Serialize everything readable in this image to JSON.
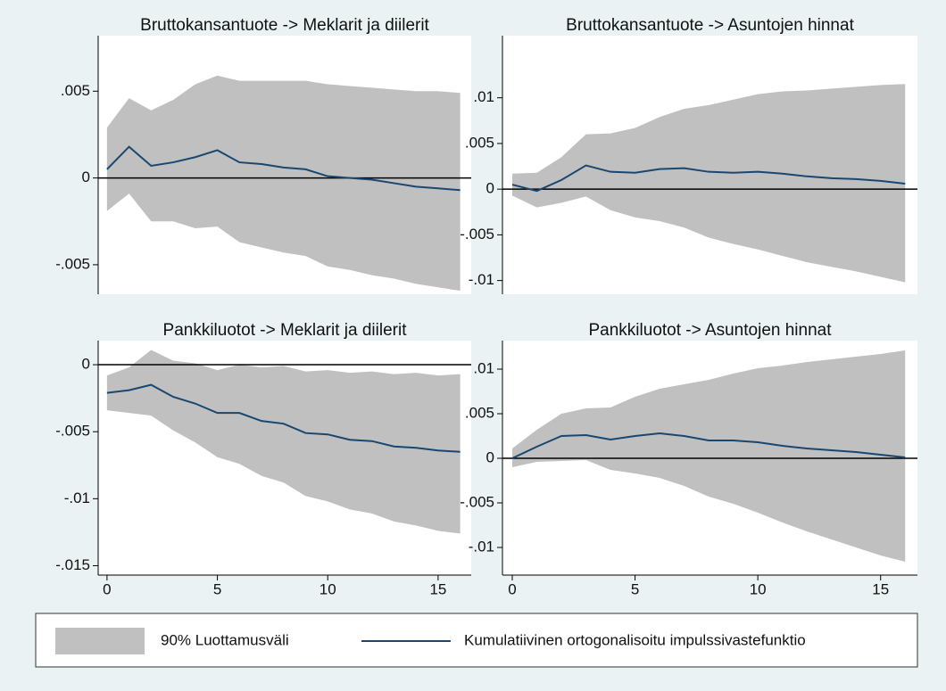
{
  "chart_data": [
    {
      "type": "line",
      "title": "Bruttokansantuote -> Meklarit ja diilerit",
      "x": [
        0,
        1,
        2,
        3,
        4,
        5,
        6,
        7,
        8,
        9,
        10,
        11,
        12,
        13,
        14,
        15,
        16
      ],
      "values": [
        0.0005,
        0.0018,
        0.0007,
        0.0009,
        0.0012,
        0.0016,
        0.0009,
        0.0008,
        0.0006,
        0.0005,
        0.0001,
        0,
        -0.0001,
        -0.0003,
        -0.0005,
        -0.0006,
        -0.0007
      ],
      "color": "#1a476f",
      "band": {
        "color": "#c0c0c0",
        "upper": [
          0.0029,
          0.0046,
          0.0039,
          0.0045,
          0.0054,
          0.0059,
          0.0056,
          0.0056,
          0.0056,
          0.0056,
          0.0054,
          0.0053,
          0.0052,
          0.0051,
          0.005,
          0.005,
          0.0049
        ],
        "lower": [
          -0.0019,
          -0.0009,
          -0.0025,
          -0.0025,
          -0.0029,
          -0.0028,
          -0.0037,
          -0.004,
          -0.0043,
          -0.0045,
          -0.0051,
          -0.0053,
          -0.0056,
          -0.0058,
          -0.0061,
          -0.0063,
          -0.0065
        ]
      },
      "refline": 0,
      "xlim": [
        -0.4,
        16.5
      ],
      "ylim": [
        -0.0067,
        0.0082
      ],
      "yticks": [
        {
          "value": 0.005,
          "label": ".005"
        },
        0,
        {
          "value": -0.005,
          "label": "-.005"
        }
      ]
    },
    {
      "type": "line",
      "title": "Bruttokansantuote -> Asuntojen hinnat",
      "x": [
        0,
        1,
        2,
        3,
        4,
        5,
        6,
        7,
        8,
        9,
        10,
        11,
        12,
        13,
        14,
        15,
        16
      ],
      "values": [
        0.0005,
        -0.0002,
        0.001,
        0.0026,
        0.0019,
        0.0018,
        0.0022,
        0.0023,
        0.0019,
        0.0018,
        0.0019,
        0.0017,
        0.0014,
        0.0012,
        0.0011,
        0.0009,
        0.0006
      ],
      "color": "#1a476f",
      "band": {
        "color": "#c0c0c0",
        "upper": [
          0.0017,
          0.0018,
          0.0035,
          0.006,
          0.0061,
          0.0067,
          0.0079,
          0.0088,
          0.0092,
          0.0098,
          0.0104,
          0.0107,
          0.0108,
          0.011,
          0.0112,
          0.0114,
          0.0115
        ],
        "lower": [
          -0.0007,
          -0.002,
          -0.0015,
          -0.0008,
          -0.0023,
          -0.0031,
          -0.0035,
          -0.0042,
          -0.0053,
          -0.006,
          -0.0066,
          -0.0073,
          -0.008,
          -0.0085,
          -0.009,
          -0.0096,
          -0.0102
        ]
      },
      "refline": 0,
      "xlim": [
        -0.4,
        16.5
      ],
      "ylim": [
        -0.0115,
        0.0168
      ],
      "yticks": [
        {
          "value": 0.01,
          "label": ".01"
        },
        {
          "value": 0.005,
          "label": ".005"
        },
        0,
        {
          "value": -0.005,
          "label": "-.005"
        },
        {
          "value": -0.01,
          "label": "-.01"
        }
      ]
    },
    {
      "type": "line",
      "title": "Pankkiluotot -> Meklarit ja diilerit",
      "x": [
        0,
        1,
        2,
        3,
        4,
        5,
        6,
        7,
        8,
        9,
        10,
        11,
        12,
        13,
        14,
        15,
        16
      ],
      "values": [
        -0.0021,
        -0.0019,
        -0.0015,
        -0.0024,
        -0.0029,
        -0.0036,
        -0.0036,
        -0.0042,
        -0.0044,
        -0.0051,
        -0.0052,
        -0.0056,
        -0.0057,
        -0.0061,
        -0.0062,
        -0.0064,
        -0.0065
      ],
      "color": "#1a476f",
      "band": {
        "color": "#c0c0c0",
        "upper": [
          -0.0008,
          -0.0002,
          0.0011,
          0.0003,
          0.0001,
          -0.0004,
          0,
          -0.0002,
          -0.0001,
          -0.0005,
          -0.0004,
          -0.0006,
          -0.0005,
          -0.0007,
          -0.0006,
          -0.0008,
          -0.0007
        ],
        "lower": [
          -0.0034,
          -0.0036,
          -0.0038,
          -0.0049,
          -0.0058,
          -0.0069,
          -0.0074,
          -0.0083,
          -0.0088,
          -0.0098,
          -0.0102,
          -0.0108,
          -0.0111,
          -0.0117,
          -0.012,
          -0.0124,
          -0.0126
        ]
      },
      "refline": 0,
      "xlim": [
        -0.4,
        16.5
      ],
      "ylim": [
        -0.0157,
        0.0018
      ],
      "xticks": [
        0,
        5,
        10,
        15
      ],
      "yticks": [
        0,
        {
          "value": -0.005,
          "label": "-.005"
        },
        {
          "value": -0.01,
          "label": "-.01"
        },
        {
          "value": -0.015,
          "label": "-.015"
        }
      ]
    },
    {
      "type": "line",
      "title": "Pankkiluotot -> Asuntojen hinnat",
      "x": [
        0,
        1,
        2,
        3,
        4,
        5,
        6,
        7,
        8,
        9,
        10,
        11,
        12,
        13,
        14,
        15,
        16
      ],
      "values": [
        0,
        0.0013,
        0.0025,
        0.0026,
        0.0021,
        0.0025,
        0.0028,
        0.0025,
        0.002,
        0.002,
        0.0018,
        0.0014,
        0.0011,
        0.0009,
        0.0007,
        0.0004,
        0.0001
      ],
      "color": "#1a476f",
      "band": {
        "color": "#c0c0c0",
        "upper": [
          0.0011,
          0.0032,
          0.005,
          0.0056,
          0.0057,
          0.0069,
          0.0078,
          0.0083,
          0.0088,
          0.0095,
          0.0101,
          0.0104,
          0.0108,
          0.0111,
          0.0114,
          0.0117,
          0.0121
        ],
        "lower": [
          -0.001,
          -0.0004,
          -0.0003,
          -0.0002,
          -0.0013,
          -0.0017,
          -0.0022,
          -0.0031,
          -0.0043,
          -0.0051,
          -0.0061,
          -0.0072,
          -0.0082,
          -0.0091,
          -0.01,
          -0.0109,
          -0.0116
        ]
      },
      "refline": 0,
      "xlim": [
        -0.4,
        16.5
      ],
      "ylim": [
        -0.0131,
        0.0132
      ],
      "xticks": [
        0,
        5,
        10,
        15
      ],
      "yticks": [
        {
          "value": 0.01,
          "label": ".01"
        },
        {
          "value": 0.005,
          "label": ".005"
        },
        0,
        {
          "value": -0.005,
          "label": "-.005"
        },
        {
          "value": -0.01,
          "label": "-.01"
        }
      ]
    }
  ],
  "legend": [
    {
      "name": "90% Luottamusväli",
      "color": "#c0c0c0"
    },
    {
      "name": "Kumulatiivinen ortogonalisoitu impulssivastefunktio",
      "color": "#1a476f"
    }
  ]
}
